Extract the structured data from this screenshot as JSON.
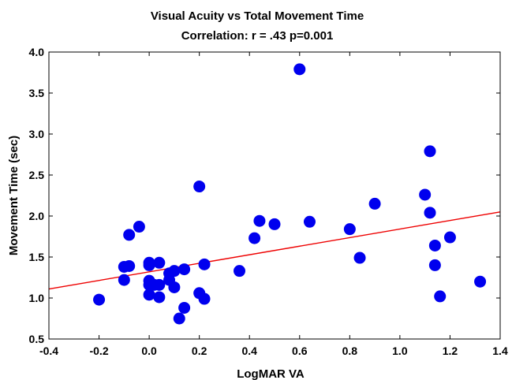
{
  "chart_data": {
    "type": "scatter",
    "title": "Visual Acuity vs Total Movement Time",
    "subtitle": "Correlation: r = .43 p=0.001",
    "xlabel": "LogMAR VA",
    "ylabel": "Movement Time (sec)",
    "xlim": [
      -0.4,
      1.4
    ],
    "ylim": [
      0.5,
      4.0
    ],
    "xticks": [
      "-0.4",
      "-0.2",
      "0.0",
      "0.2",
      "0.4",
      "0.6",
      "0.8",
      "1.0",
      "1.2",
      "1.4"
    ],
    "yticks": [
      "0.5",
      "1.0",
      "1.5",
      "2.0",
      "2.5",
      "3.0",
      "3.5",
      "4.0"
    ],
    "grid": false,
    "point_color": "#0000ee",
    "fit_line_color": "#ee0000",
    "fit_line": {
      "x": [
        -0.4,
        1.4
      ],
      "y": [
        1.11,
        2.05
      ]
    },
    "points": [
      {
        "x": -0.2,
        "y": 0.98
      },
      {
        "x": -0.1,
        "y": 1.38
      },
      {
        "x": -0.1,
        "y": 1.22
      },
      {
        "x": -0.08,
        "y": 1.39
      },
      {
        "x": -0.08,
        "y": 1.77
      },
      {
        "x": -0.04,
        "y": 1.87
      },
      {
        "x": 0.0,
        "y": 1.43
      },
      {
        "x": 0.0,
        "y": 1.4
      },
      {
        "x": 0.0,
        "y": 1.21
      },
      {
        "x": 0.0,
        "y": 1.16
      },
      {
        "x": 0.0,
        "y": 1.04
      },
      {
        "x": 0.02,
        "y": 1.16
      },
      {
        "x": 0.04,
        "y": 1.43
      },
      {
        "x": 0.04,
        "y": 1.16
      },
      {
        "x": 0.04,
        "y": 1.01
      },
      {
        "x": 0.08,
        "y": 1.3
      },
      {
        "x": 0.08,
        "y": 1.22
      },
      {
        "x": 0.1,
        "y": 1.33
      },
      {
        "x": 0.1,
        "y": 1.13
      },
      {
        "x": 0.12,
        "y": 0.75
      },
      {
        "x": 0.14,
        "y": 0.88
      },
      {
        "x": 0.14,
        "y": 1.35
      },
      {
        "x": 0.2,
        "y": 2.36
      },
      {
        "x": 0.2,
        "y": 1.06
      },
      {
        "x": 0.22,
        "y": 1.41
      },
      {
        "x": 0.22,
        "y": 0.99
      },
      {
        "x": 0.36,
        "y": 1.33
      },
      {
        "x": 0.42,
        "y": 1.73
      },
      {
        "x": 0.44,
        "y": 1.94
      },
      {
        "x": 0.5,
        "y": 1.9
      },
      {
        "x": 0.6,
        "y": 3.79
      },
      {
        "x": 0.64,
        "y": 1.93
      },
      {
        "x": 0.8,
        "y": 1.84
      },
      {
        "x": 0.84,
        "y": 1.49
      },
      {
        "x": 0.9,
        "y": 2.15
      },
      {
        "x": 1.1,
        "y": 2.26
      },
      {
        "x": 1.12,
        "y": 2.79
      },
      {
        "x": 1.12,
        "y": 2.04
      },
      {
        "x": 1.14,
        "y": 1.64
      },
      {
        "x": 1.14,
        "y": 1.4
      },
      {
        "x": 1.16,
        "y": 1.02
      },
      {
        "x": 1.2,
        "y": 1.74
      },
      {
        "x": 1.32,
        "y": 1.2
      }
    ]
  }
}
